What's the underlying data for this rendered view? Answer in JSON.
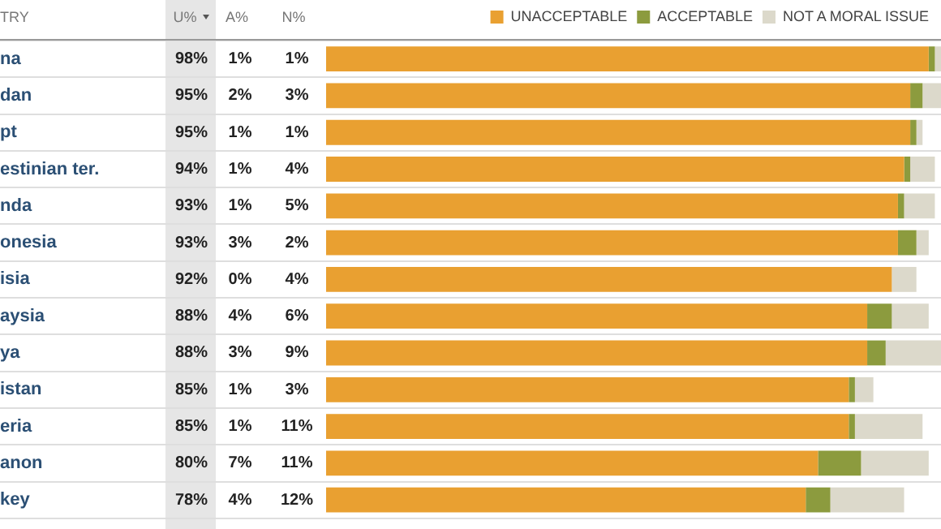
{
  "chart_data": {
    "type": "bar",
    "orientation": "horizontal",
    "stacked": true,
    "categories": [
      "na",
      "dan",
      "pt",
      "estinian ter.",
      "nda",
      "onesia",
      "isia",
      "aysia",
      "ya",
      "istan",
      "eria",
      "anon",
      "key"
    ],
    "series": [
      {
        "name": "UNACCEPTABLE",
        "color": "#e9a031",
        "values": [
          98,
          95,
          95,
          94,
          93,
          93,
          92,
          88,
          88,
          85,
          85,
          80,
          78
        ],
        "value_labels": [
          "98%",
          "95%",
          "95%",
          "94%",
          "93%",
          "93%",
          "92%",
          "88%",
          "88%",
          "85%",
          "85%",
          "80%",
          "78%"
        ]
      },
      {
        "name": "ACCEPTABLE",
        "color": "#8c9b3e",
        "values": [
          1,
          2,
          1,
          1,
          1,
          3,
          0,
          4,
          3,
          1,
          1,
          7,
          4
        ],
        "value_labels": [
          "1%",
          "2%",
          "1%",
          "1%",
          "1%",
          "3%",
          "0%",
          "4%",
          "3%",
          "1%",
          "1%",
          "7%",
          "4%"
        ]
      },
      {
        "name": "NOT A MORAL ISSUE",
        "color": "#dcd9cb",
        "values": [
          1,
          3,
          1,
          4,
          5,
          2,
          4,
          6,
          9,
          3,
          11,
          11,
          12
        ],
        "value_labels": [
          "1%",
          "3%",
          "1%",
          "4%",
          "5%",
          "2%",
          "4%",
          "6%",
          "9%",
          "3%",
          "11%",
          "11%",
          "12%"
        ]
      }
    ],
    "xlim": [
      0,
      100
    ],
    "tick_labels": "y",
    "grid": "y",
    "legend": "top right",
    "annotations": [
      "TRY",
      "U%",
      "A%",
      "N%"
    ]
  }
}
